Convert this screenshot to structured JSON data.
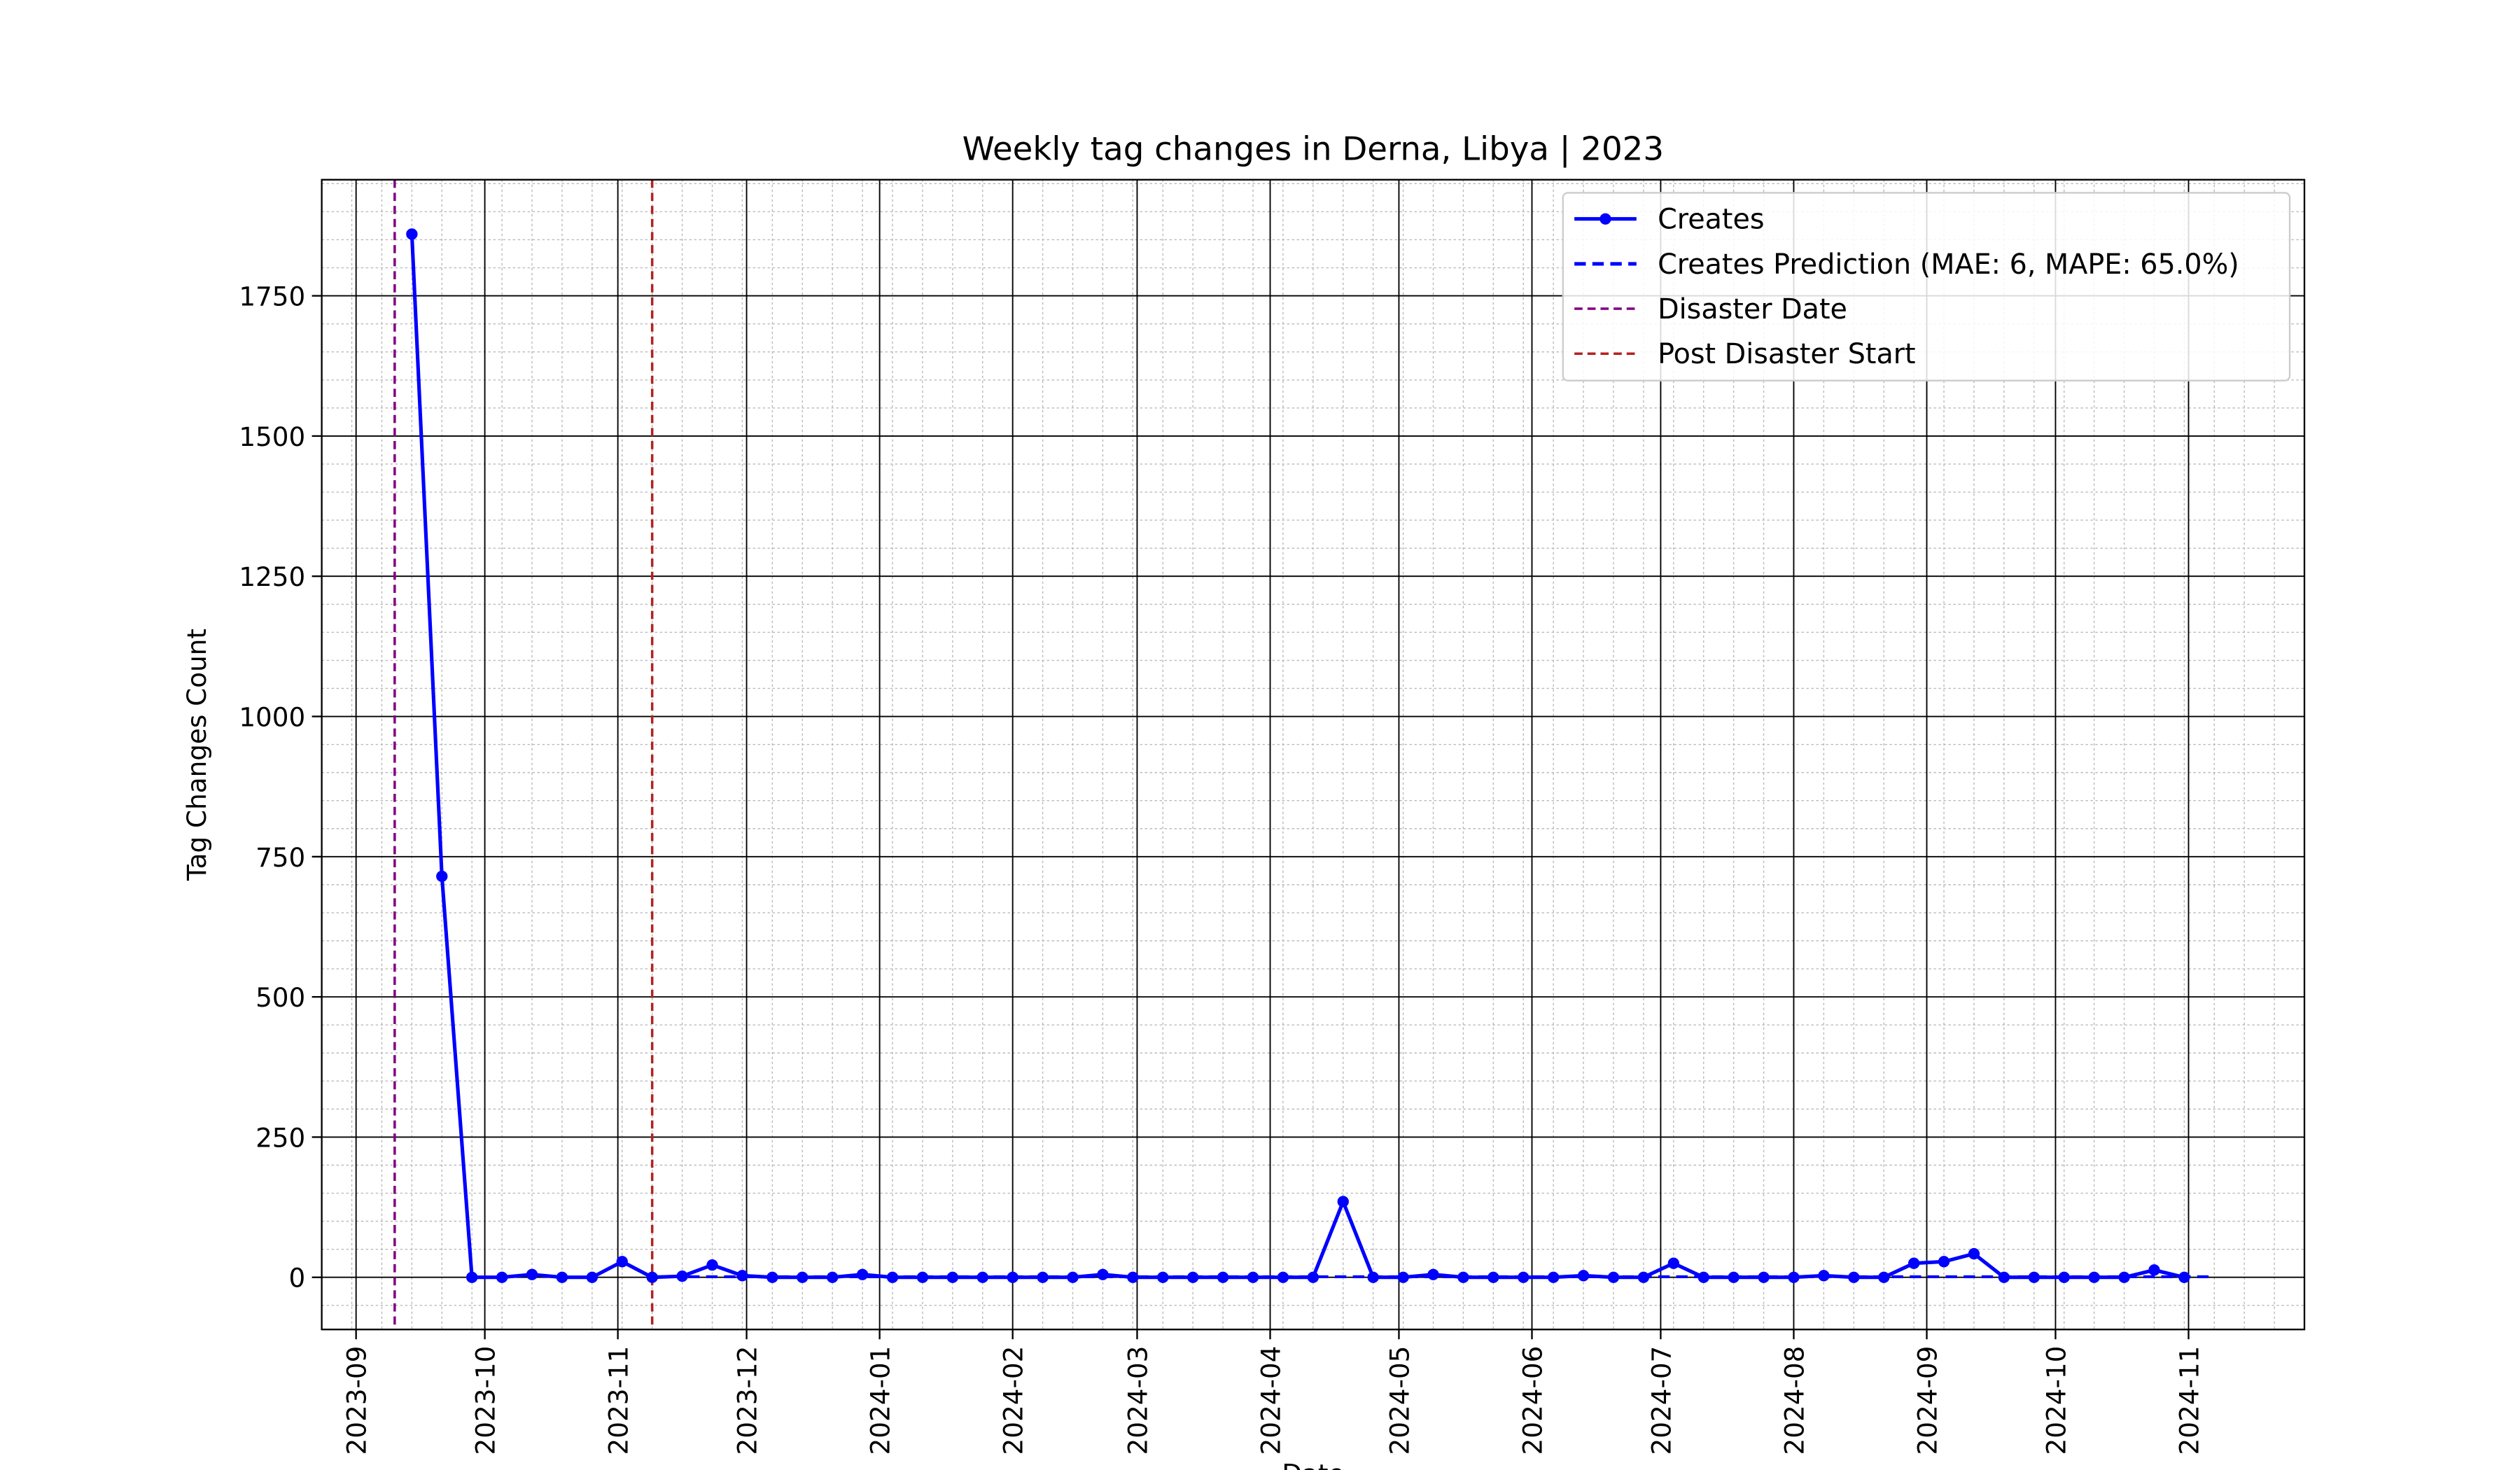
{
  "chart_data": {
    "type": "line",
    "title": "Weekly tag changes in Derna, Libya | 2023",
    "x_label": "Date",
    "y_label": "Tag Changes Count",
    "x": [
      "2023-09-14",
      "2023-09-21",
      "2023-09-28",
      "2023-10-05",
      "2023-10-12",
      "2023-10-19",
      "2023-10-26",
      "2023-11-02",
      "2023-11-09",
      "2023-11-16",
      "2023-11-23",
      "2023-11-30",
      "2023-12-07",
      "2023-12-14",
      "2023-12-21",
      "2023-12-28",
      "2024-01-04",
      "2024-01-11",
      "2024-01-18",
      "2024-01-25",
      "2024-02-01",
      "2024-02-08",
      "2024-02-15",
      "2024-02-22",
      "2024-02-29",
      "2024-03-07",
      "2024-03-14",
      "2024-03-21",
      "2024-03-28",
      "2024-04-04",
      "2024-04-11",
      "2024-04-18",
      "2024-04-25",
      "2024-05-02",
      "2024-05-09",
      "2024-05-16",
      "2024-05-23",
      "2024-05-30",
      "2024-06-06",
      "2024-06-13",
      "2024-06-20",
      "2024-06-27",
      "2024-07-04",
      "2024-07-11",
      "2024-07-18",
      "2024-07-25",
      "2024-08-01",
      "2024-08-08",
      "2024-08-15",
      "2024-08-22",
      "2024-08-29",
      "2024-09-05",
      "2024-09-12",
      "2024-09-19",
      "2024-09-26",
      "2024-10-03",
      "2024-10-10",
      "2024-10-17",
      "2024-10-24",
      "2024-10-31",
      "2024-11-07"
    ],
    "series": [
      {
        "name": "Creates",
        "color": "#0000ff",
        "style": "solid",
        "markers": true,
        "values": [
          1860,
          715,
          0,
          0,
          5,
          0,
          0,
          28,
          0,
          2,
          22,
          3,
          0,
          0,
          0,
          5,
          0,
          0,
          0,
          0,
          0,
          0,
          0,
          5,
          0,
          0,
          0,
          0,
          0,
          0,
          0,
          135,
          0,
          0,
          5,
          0,
          0,
          0,
          0,
          3,
          0,
          0,
          25,
          0,
          0,
          0,
          0,
          3,
          0,
          0,
          25,
          28,
          42,
          0,
          0,
          0,
          0,
          0,
          13,
          0,
          null
        ]
      },
      {
        "name": "Creates Prediction (MAE: 6, MAPE: 65.0%)",
        "color": "#0000ff",
        "style": "dashed",
        "markers": false,
        "values": [
          null,
          null,
          null,
          null,
          null,
          null,
          null,
          null,
          1,
          1,
          1,
          1,
          1,
          1,
          1,
          1,
          1,
          1,
          1,
          1,
          1,
          1,
          1,
          1,
          1,
          1,
          1,
          1,
          1,
          1,
          1,
          1,
          1,
          1,
          1,
          1,
          1,
          1,
          1,
          1,
          1,
          1,
          1,
          1,
          1,
          1,
          1,
          1,
          1,
          1,
          1,
          1,
          1,
          1,
          1,
          1,
          1,
          1,
          1,
          1,
          1
        ]
      }
    ],
    "events": [
      {
        "name": "Disaster Date",
        "date": "2023-09-10",
        "color": "#800080"
      },
      {
        "name": "Post Disaster Start",
        "date": "2023-11-09",
        "color": "#b22222"
      }
    ],
    "xlim": [
      "2023-08-24",
      "2024-11-28"
    ],
    "xticks": [
      {
        "value": "2023-09-01",
        "label": "2023-09"
      },
      {
        "value": "2023-10-01",
        "label": "2023-10"
      },
      {
        "value": "2023-11-01",
        "label": "2023-11"
      },
      {
        "value": "2023-12-01",
        "label": "2023-12"
      },
      {
        "value": "2024-01-01",
        "label": "2024-01"
      },
      {
        "value": "2024-02-01",
        "label": "2024-02"
      },
      {
        "value": "2024-03-01",
        "label": "2024-03"
      },
      {
        "value": "2024-04-01",
        "label": "2024-04"
      },
      {
        "value": "2024-05-01",
        "label": "2024-05"
      },
      {
        "value": "2024-06-01",
        "label": "2024-06"
      },
      {
        "value": "2024-07-01",
        "label": "2024-07"
      },
      {
        "value": "2024-08-01",
        "label": "2024-08"
      },
      {
        "value": "2024-09-01",
        "label": "2024-09"
      },
      {
        "value": "2024-10-01",
        "label": "2024-10"
      },
      {
        "value": "2024-11-01",
        "label": "2024-11"
      }
    ],
    "ylim": [
      -93,
      1957
    ],
    "yticks": [
      0,
      250,
      500,
      750,
      1000,
      1250,
      1500,
      1750
    ],
    "grid": true,
    "minor_grid": true,
    "legend": "upper right"
  }
}
